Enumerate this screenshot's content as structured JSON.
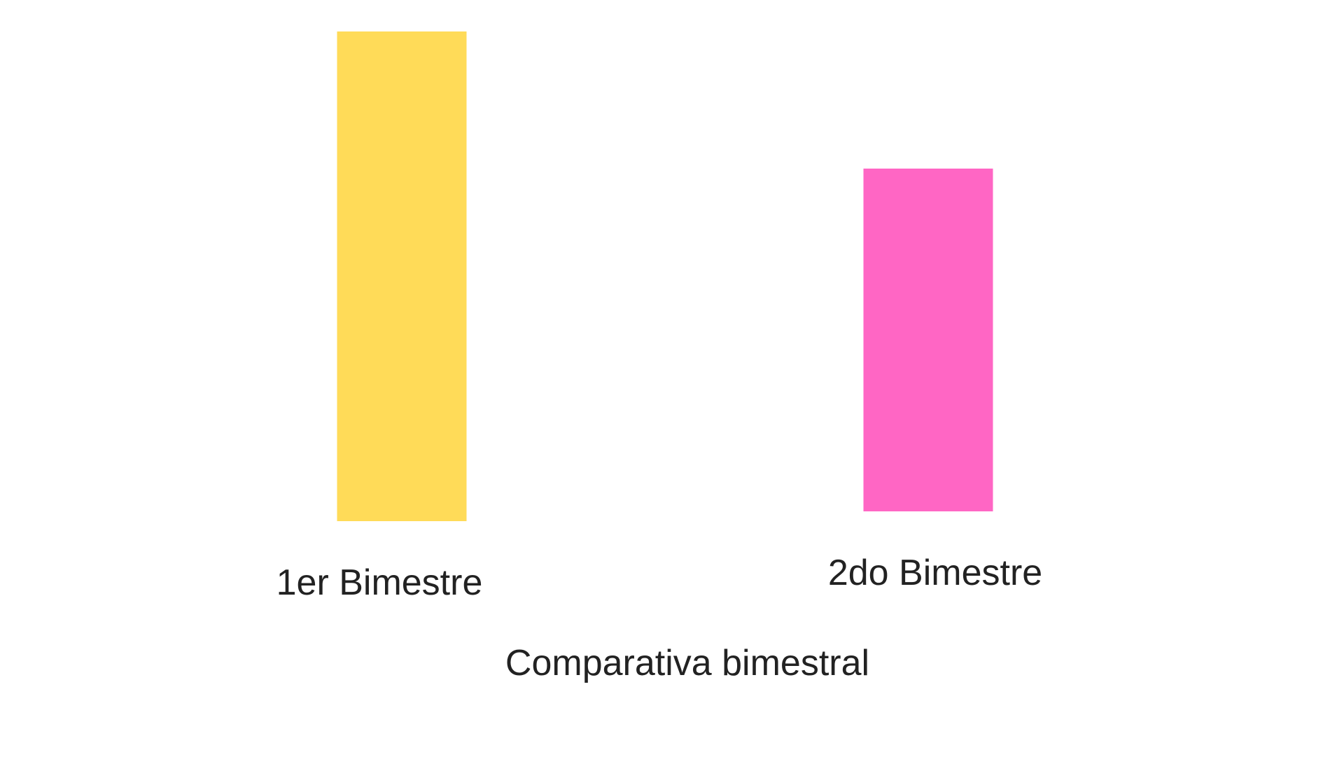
{
  "chart_data": {
    "type": "bar",
    "categories": [
      "1er Bimestre",
      "2do Bimestre"
    ],
    "values": [
      100,
      70
    ],
    "colors": [
      "#FFDB58",
      "#FF66C4"
    ],
    "title": "",
    "xlabel": "Comparativa bimestral",
    "ylabel": "",
    "ylim": [
      0,
      100
    ],
    "grid": false,
    "legend": "none"
  }
}
